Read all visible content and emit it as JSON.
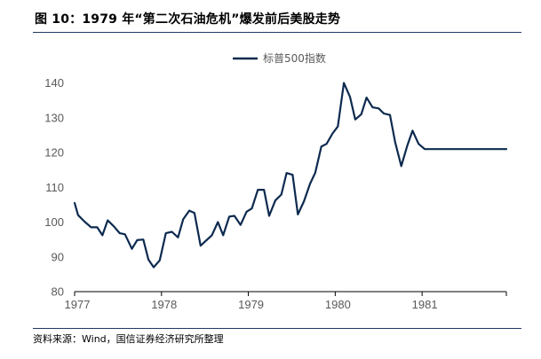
{
  "header": {
    "title": "图  10：1979 年“第二次石油危机”爆发前后美股走势"
  },
  "footer": {
    "source": "资料来源：Wind，国信证券经济研究所整理"
  },
  "chart_data": {
    "type": "line",
    "title": "图  10：1979 年“第二次石油危机”爆发前后美股走势",
    "xlabel": "",
    "ylabel": "",
    "ylim": [
      80,
      145
    ],
    "yticks": [
      80,
      90,
      100,
      110,
      120,
      130,
      140
    ],
    "xlim": [
      1977.0,
      1981.97
    ],
    "xticks": [
      {
        "value": 1977,
        "label": "1977"
      },
      {
        "value": 1978,
        "label": "1978"
      },
      {
        "value": 1979,
        "label": "1979"
      },
      {
        "value": 1980,
        "label": "1980"
      },
      {
        "value": 1981,
        "label": "1981"
      }
    ],
    "legend": "top-center",
    "color": "#0d2a4f",
    "grid": false,
    "series": [
      {
        "name": "标普500指数",
        "x": [
          1977.0,
          1977.04,
          1977.12,
          1977.19,
          1977.26,
          1977.32,
          1977.38,
          1977.45,
          1977.52,
          1977.58,
          1977.66,
          1977.72,
          1977.79,
          1977.85,
          1977.91,
          1977.98,
          1978.05,
          1978.12,
          1978.19,
          1978.25,
          1978.32,
          1978.38,
          1978.45,
          1978.51,
          1978.58,
          1978.65,
          1978.71,
          1978.78,
          1978.84,
          1978.91,
          1978.98,
          1979.04,
          1979.11,
          1979.18,
          1979.24,
          1979.31,
          1979.38,
          1979.44,
          1979.51,
          1979.57,
          1979.64,
          1979.71,
          1979.77,
          1979.84,
          1979.9,
          1979.97,
          1980.03,
          1980.1,
          1980.17,
          1980.23,
          1980.3,
          1980.36,
          1980.43,
          1980.5,
          1980.56,
          1980.63,
          1980.69,
          1980.76,
          1980.83,
          1980.89,
          1980.96,
          1981.03,
          1981.09,
          1981.16,
          1981.23,
          1981.29,
          1981.35,
          1981.42,
          1981.49,
          1981.55,
          1981.62,
          1981.68,
          1981.75,
          1981.82,
          1981.88,
          1981.95,
          1981.97
        ],
        "values": [
          105.5,
          102.0,
          100.0,
          98.5,
          98.5,
          96.2,
          100.5,
          98.8,
          96.8,
          96.5,
          92.3,
          94.8,
          95.0,
          89.2,
          87.0,
          89.0,
          96.8,
          97.2,
          95.6,
          100.8,
          103.3,
          102.6,
          93.2,
          94.6,
          96.2,
          100.0,
          96.2,
          101.6,
          101.8,
          99.2,
          103.0,
          103.9,
          109.3,
          109.3,
          101.8,
          106.2,
          107.9,
          114.1,
          113.6,
          102.2,
          106.0,
          111.0,
          114.2,
          121.7,
          122.5,
          125.5,
          127.5,
          140.0,
          136.0,
          129.5,
          131.0,
          135.8,
          133.0,
          132.7,
          131.2,
          130.8,
          123.0,
          116.1,
          122.0,
          126.3,
          122.5,
          121.0,
          121.0,
          121.0,
          121.0,
          121.0,
          121.0,
          121.0,
          121.0,
          121.0,
          121.0,
          121.0,
          121.0,
          121.0,
          121.0,
          121.0,
          121.0
        ]
      }
    ]
  }
}
